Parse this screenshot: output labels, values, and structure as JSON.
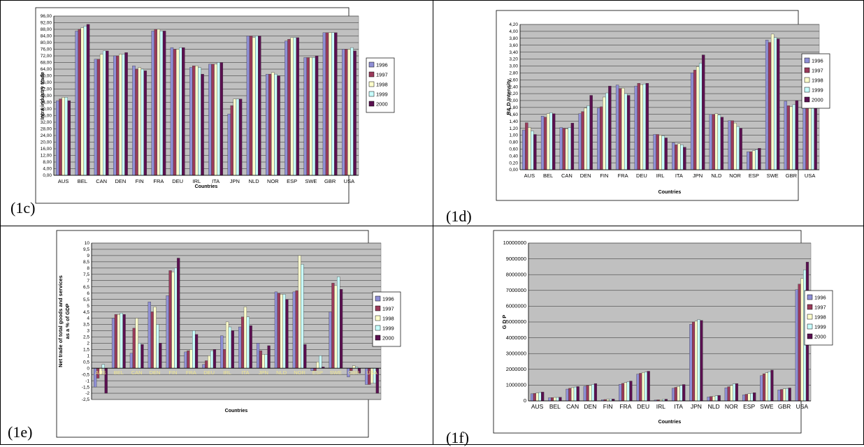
{
  "panels": [
    {
      "label": "(1c)"
    },
    {
      "label": "(1d)"
    },
    {
      "label": "(1e)"
    },
    {
      "label": "(1f)"
    }
  ],
  "series_colors": [
    "#8f8fd6",
    "#9a3a5a",
    "#ffffcc",
    "#c8ffff",
    "#5a1050"
  ],
  "chart_data": [
    {
      "type": "bar",
      "categories": [
        "AUS",
        "BEL",
        "CAN",
        "DEN",
        "FIN",
        "FRA",
        "DEU",
        "IRL",
        "ITA",
        "JPN",
        "NLD",
        "NOR",
        "ESP",
        "SWE",
        "GBR",
        "USA"
      ],
      "series": [
        {
          "name": "1996",
          "values": [
            45,
            87,
            70,
            72,
            66,
            87,
            77,
            65,
            67,
            37,
            84,
            61,
            81,
            71,
            86,
            76
          ]
        },
        {
          "name": "1997",
          "values": [
            46,
            88,
            70,
            72,
            64,
            88,
            76,
            66,
            67,
            42,
            84,
            61,
            82,
            71,
            86,
            76
          ]
        },
        {
          "name": "1998",
          "values": [
            47,
            89,
            73,
            73,
            65,
            88,
            76,
            66,
            67,
            46,
            83,
            62,
            83,
            71,
            86,
            76
          ]
        },
        {
          "name": "1999",
          "values": [
            47,
            90,
            75,
            73,
            64,
            87,
            77,
            65,
            68,
            46,
            84,
            61,
            83,
            71,
            86,
            77
          ]
        },
        {
          "name": "2000",
          "values": [
            45,
            91,
            75,
            74,
            63,
            87,
            77,
            61,
            68,
            46,
            84,
            60,
            83,
            72,
            86,
            75
          ]
        }
      ],
      "xlabel": "Countries",
      "ylabel": "Intra industry trade",
      "ylim": [
        0,
        96
      ],
      "ytick_step": 4,
      "ytick_decimals": 2,
      "ytick_sep": ",",
      "legend": "right",
      "grid": true
    },
    {
      "type": "bar",
      "categories": [
        "AUS",
        "BEL",
        "CAN",
        "DEN",
        "FIN",
        "FRA",
        "DEU",
        "IRL",
        "ITA",
        "JPN",
        "NLD",
        "NOR",
        "ESP",
        "SWE",
        "GBR",
        "USA"
      ],
      "series": [
        {
          "name": "1996",
          "values": [
            1.15,
            1.55,
            1.22,
            1.62,
            1.78,
            2.45,
            2.42,
            1.02,
            0.78,
            2.8,
            1.6,
            1.42,
            0.52,
            3.75,
            1.98,
            2.9
          ]
        },
        {
          "name": "1997",
          "values": [
            1.36,
            1.52,
            1.2,
            1.68,
            1.82,
            2.35,
            2.5,
            1.02,
            0.72,
            2.88,
            1.6,
            1.42,
            0.52,
            3.68,
            1.85,
            2.92
          ]
        },
        {
          "name": "1998",
          "values": [
            1.22,
            1.62,
            1.18,
            1.78,
            2.1,
            2.36,
            2.46,
            1.0,
            0.75,
            2.98,
            1.62,
            1.35,
            0.55,
            3.92,
            1.82,
            3.2
          ]
        },
        {
          "name": "1999",
          "values": [
            1.12,
            1.65,
            1.22,
            1.85,
            2.22,
            2.2,
            2.48,
            0.98,
            0.72,
            3.08,
            1.58,
            1.25,
            0.58,
            3.82,
            1.88,
            3.22
          ]
        },
        {
          "name": "2000",
          "values": [
            1.02,
            1.62,
            1.35,
            2.15,
            2.42,
            2.15,
            2.5,
            0.92,
            0.65,
            3.32,
            1.52,
            1.2,
            0.62,
            3.78,
            2.0,
            3.2
          ]
        }
      ],
      "xlabel": "Countries",
      "ylabel": "R& D Intensity",
      "ylim": [
        0,
        4.2
      ],
      "ytick_step": 0.2,
      "ytick_decimals": 2,
      "ytick_sep": ",",
      "legend": "right",
      "grid": true
    },
    {
      "type": "bar",
      "categories": [
        "AUS",
        "BEL",
        "CAN",
        "DEN",
        "FIN",
        "FRA",
        "DEU",
        "IRL",
        "ITA",
        "JPN",
        "NLD",
        "NOR",
        "ESP",
        "SWE",
        "GBR",
        "USA"
      ],
      "series": [
        {
          "name": "1996",
          "values": [
            -1.5,
            4.0,
            1.2,
            5.3,
            5.8,
            1.3,
            0.3,
            2.6,
            3.3,
            2.0,
            6.1,
            6.1,
            -0.2,
            4.5,
            -0.7,
            -1.3
          ]
        },
        {
          "name": "1997",
          "values": [
            -0.8,
            4.3,
            3.2,
            4.5,
            7.8,
            1.4,
            0.6,
            1.5,
            4.1,
            1.4,
            6.0,
            6.2,
            -0.2,
            6.8,
            -0.2,
            -1.3
          ]
        },
        {
          "name": "1998",
          "values": [
            -0.5,
            4.3,
            4.0,
            4.9,
            7.7,
            1.5,
            1.0,
            3.7,
            4.9,
            1.1,
            5.9,
            9.0,
            0.5,
            6.6,
            0.2,
            -1.2
          ]
        },
        {
          "name": "1999",
          "values": [
            0.3,
            4.4,
            2.0,
            3.5,
            8.0,
            3.0,
            1.4,
            3.3,
            4.1,
            1.1,
            5.9,
            8.3,
            1.0,
            7.3,
            0.1,
            -1.2
          ]
        },
        {
          "name": "2000",
          "values": [
            -2.0,
            4.3,
            1.9,
            2.0,
            8.8,
            2.7,
            1.5,
            3.0,
            3.4,
            1.8,
            5.5,
            1.9,
            0.1,
            6.3,
            -0.4,
            -2.0
          ]
        }
      ],
      "xlabel": "Countries",
      "ylabel": "Net trade of total goods and services as a % of GDP",
      "ylim": [
        -2.5,
        10
      ],
      "ytick_step": 0.5,
      "ytick_decimals": 1,
      "ytick_sep": ",",
      "ytick_trim": true,
      "legend": "right",
      "grid": true
    },
    {
      "type": "bar",
      "categories": [
        "AUS",
        "BEL",
        "CAN",
        "DEN",
        "FIN",
        "FRA",
        "DEU",
        "IRL",
        "ITA",
        "JPN",
        "NLD",
        "NOR",
        "ESP",
        "SWE",
        "GBR",
        "USA"
      ],
      "series": [
        {
          "name": "1996",
          "values": [
            450000,
            200000,
            750000,
            930000,
            80000,
            1050000,
            1700000,
            60000,
            800000,
            4850000,
            250000,
            830000,
            380000,
            1600000,
            700000,
            7050000
          ]
        },
        {
          "name": "1997",
          "values": [
            480000,
            210000,
            800000,
            980000,
            90000,
            1110000,
            1750000,
            70000,
            860000,
            5000000,
            280000,
            900000,
            420000,
            1720000,
            730000,
            7400000
          ]
        },
        {
          "name": "1998",
          "values": [
            500000,
            220000,
            840000,
            990000,
            100000,
            1160000,
            1800000,
            80000,
            920000,
            5050000,
            300000,
            990000,
            450000,
            1780000,
            760000,
            7750000
          ]
        },
        {
          "name": "1999",
          "values": [
            530000,
            220000,
            880000,
            1040000,
            110000,
            1200000,
            1830000,
            90000,
            980000,
            5150000,
            320000,
            1080000,
            480000,
            1850000,
            790000,
            8300000
          ]
        },
        {
          "name": "2000",
          "values": [
            560000,
            230000,
            910000,
            1100000,
            120000,
            1260000,
            1880000,
            110000,
            1040000,
            5100000,
            350000,
            1100000,
            520000,
            1950000,
            820000,
            8800000
          ]
        }
      ],
      "xlabel": "Countries",
      "ylabel": "G D P",
      "ylim": [
        0,
        10000000
      ],
      "ytick_step": 1000000,
      "ytick_decimals": 0,
      "ytick_sep": ",",
      "legend": "right",
      "grid": true
    }
  ]
}
